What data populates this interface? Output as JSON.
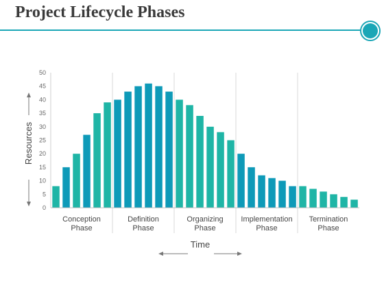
{
  "slide": {
    "title": "Project Lifecycle Phases",
    "accent_color": "#1aa6b6"
  },
  "chart_data": {
    "type": "bar",
    "ylabel": "Resources",
    "xlabel": "Time",
    "ylim": [
      0,
      50
    ],
    "yticks": [
      0,
      5,
      10,
      15,
      20,
      25,
      30,
      35,
      40,
      45,
      50
    ],
    "grid": false,
    "phases": [
      {
        "label": [
          "Conception",
          "Phase"
        ],
        "values": [
          8,
          15,
          20,
          27,
          35,
          39
        ],
        "colors": [
          "#1fb5a6",
          "#0e9ab8",
          "#1fb5a6",
          "#0e9ab8",
          "#1fb5a6",
          "#1fb5a6"
        ]
      },
      {
        "label": [
          "Definition",
          "Phase"
        ],
        "values": [
          40,
          43,
          45,
          46,
          45,
          43
        ],
        "colors": [
          "#0e9ab8",
          "#0e9ab8",
          "#0e9ab8",
          "#0e9ab8",
          "#0e9ab8",
          "#0e9ab8"
        ]
      },
      {
        "label": [
          "Organizing",
          "Phase"
        ],
        "values": [
          40,
          38,
          34,
          30,
          28,
          25
        ],
        "colors": [
          "#1fb5a6",
          "#1fb5a6",
          "#1fb5a6",
          "#1fb5a6",
          "#1fb5a6",
          "#1fb5a6"
        ]
      },
      {
        "label": [
          "Implementation",
          "Phase"
        ],
        "values": [
          20,
          15,
          12,
          11,
          10,
          8
        ],
        "colors": [
          "#0e9ab8",
          "#0e9ab8",
          "#0e9ab8",
          "#0e9ab8",
          "#0e9ab8",
          "#0e9ab8"
        ]
      },
      {
        "label": [
          "Termination",
          "Phase"
        ],
        "values": [
          8,
          7,
          6,
          5,
          4,
          3
        ],
        "colors": [
          "#1fb5a6",
          "#1fb5a6",
          "#1fb5a6",
          "#1fb5a6",
          "#1fb5a6",
          "#1fb5a6"
        ]
      }
    ]
  }
}
